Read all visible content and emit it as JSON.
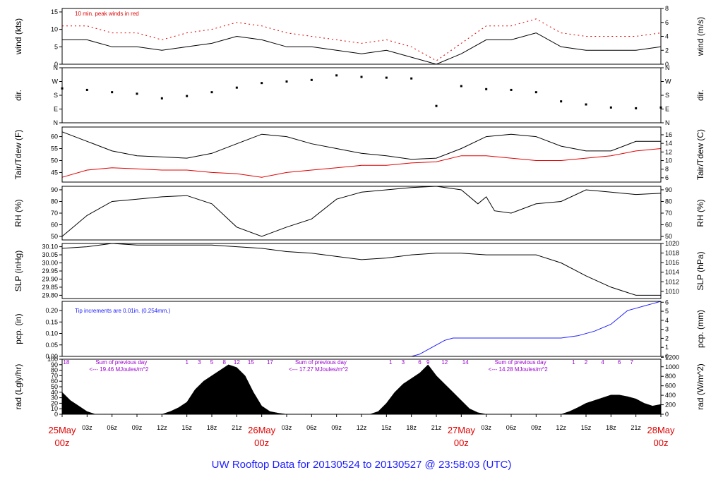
{
  "footer": {
    "title": "UW Rooftop Data for 20130524  to  20130527 @ 23:58:03  (UTC)"
  },
  "colors": {
    "black": "#000000",
    "red": "#e00000",
    "blue": "#2020ff",
    "purple": "#9900cc"
  },
  "chart_data": [
    {
      "id": "wind",
      "type": "line",
      "ylabel_left": "wind (kts)",
      "ylabel_right": "wind (m/s)",
      "ylim": [
        0,
        16
      ],
      "yticks": [
        0,
        5,
        10,
        15
      ],
      "ylim_right": [
        0,
        8
      ],
      "yticks_right": [
        0,
        2,
        4,
        6,
        8
      ],
      "annotation": "10 min. peak winds in red",
      "series": [
        {
          "name": "wind speed (kts)",
          "color": "#000000",
          "x": [
            0,
            3,
            6,
            9,
            12,
            15,
            18,
            21,
            24,
            27,
            30,
            33,
            36,
            39,
            42,
            45,
            48,
            51,
            54,
            57,
            60,
            63,
            66,
            69,
            72
          ],
          "y": [
            7,
            7,
            5,
            5,
            4,
            5,
            6,
            8,
            7,
            5,
            5,
            4,
            3,
            4,
            2,
            0,
            3,
            7,
            7,
            9,
            5,
            4,
            4,
            4,
            5
          ]
        },
        {
          "name": "10 min. peak winds",
          "color": "#e00000",
          "x": [
            0,
            3,
            6,
            9,
            12,
            15,
            18,
            21,
            24,
            27,
            30,
            33,
            36,
            39,
            42,
            45,
            48,
            51,
            54,
            57,
            60,
            63,
            66,
            69,
            72
          ],
          "y": [
            11,
            11,
            9,
            9,
            7,
            9,
            10,
            12,
            11,
            9,
            8,
            7,
            6,
            7,
            5,
            1,
            6,
            11,
            11,
            13,
            9,
            8,
            8,
            8,
            9
          ]
        }
      ]
    },
    {
      "id": "dir",
      "type": "scatter",
      "ylabel_left": "dir.",
      "ylabel_right": "dir.",
      "ylim": [
        0,
        360
      ],
      "ytick_values": [
        0,
        90,
        180,
        270,
        360
      ],
      "ytick_labels": [
        "N",
        "E",
        "S",
        "W",
        "N"
      ],
      "series": [
        {
          "name": "wind direction (deg)",
          "color": "#000000",
          "x": [
            0,
            3,
            6,
            9,
            12,
            15,
            18,
            21,
            24,
            27,
            30,
            33,
            36,
            39,
            42,
            45,
            48,
            51,
            54,
            57,
            60,
            63,
            66,
            69,
            72
          ],
          "y": [
            225,
            215,
            200,
            190,
            160,
            175,
            200,
            230,
            260,
            270,
            280,
            310,
            300,
            295,
            290,
            110,
            240,
            220,
            215,
            200,
            140,
            120,
            100,
            95,
            100
          ]
        }
      ]
    },
    {
      "id": "temp",
      "type": "line",
      "ylabel_left": "Tair/Tdew (F)",
      "ylabel_right": "Tair/Tdew (C)",
      "ylim": [
        41,
        64
      ],
      "yticks": [
        45,
        50,
        55,
        60
      ],
      "ylim_right": [
        5,
        17.8
      ],
      "yticks_right": [
        6,
        8,
        10,
        12,
        14,
        16
      ],
      "series": [
        {
          "name": "Tair",
          "color": "#000000",
          "x": [
            0,
            3,
            6,
            9,
            12,
            15,
            18,
            21,
            24,
            27,
            30,
            33,
            36,
            39,
            42,
            45,
            48,
            51,
            54,
            57,
            60,
            63,
            66,
            69,
            72
          ],
          "y": [
            62,
            58,
            54,
            52,
            51.5,
            51,
            53,
            57,
            61,
            60,
            57,
            55,
            53,
            52,
            50.5,
            51,
            55,
            60,
            61,
            60,
            56,
            54,
            54,
            58,
            58
          ]
        },
        {
          "name": "Tdew",
          "color": "#e00000",
          "x": [
            0,
            3,
            6,
            9,
            12,
            15,
            18,
            21,
            24,
            27,
            30,
            33,
            36,
            39,
            42,
            45,
            48,
            51,
            54,
            57,
            60,
            63,
            66,
            69,
            72
          ],
          "y": [
            43,
            46,
            47,
            46.5,
            46,
            46,
            45,
            44.5,
            43,
            45,
            46,
            47,
            48,
            48,
            49,
            49.5,
            52,
            52,
            51,
            50,
            50,
            51,
            52,
            54,
            55
          ]
        }
      ]
    },
    {
      "id": "rh",
      "type": "line",
      "ylabel_left": "RH (%)",
      "ylabel_right": "RH (%)",
      "ylim": [
        47,
        93
      ],
      "yticks": [
        50,
        60,
        70,
        80,
        90
      ],
      "series": [
        {
          "name": "RH",
          "color": "#000000",
          "x": [
            0,
            3,
            6,
            9,
            12,
            15,
            18,
            21,
            24,
            27,
            30,
            33,
            36,
            39,
            42,
            45,
            48,
            50,
            51,
            52,
            54,
            57,
            60,
            63,
            66,
            69,
            72
          ],
          "y": [
            50,
            68,
            80,
            82,
            84,
            85,
            78,
            58,
            50,
            58,
            65,
            82,
            88,
            90,
            92,
            93,
            90,
            78,
            84,
            72,
            70,
            78,
            80,
            90,
            88,
            86,
            87
          ]
        }
      ]
    },
    {
      "id": "slp",
      "type": "line",
      "ylabel_left": "SLP (inHg)",
      "ylabel_right": "SLP (hPa)",
      "ylim": [
        29.78,
        30.12
      ],
      "yticks": [
        29.8,
        29.85,
        29.9,
        29.95,
        30.0,
        30.05,
        30.1
      ],
      "ytick_labels": [
        "29.80",
        "29.85",
        "29.90",
        "29.95",
        "30.00",
        "30.05",
        "30.10"
      ],
      "ylim_right": [
        1008.5,
        1020
      ],
      "yticks_right": [
        1010,
        1012,
        1014,
        1016,
        1018,
        1020
      ],
      "series": [
        {
          "name": "SLP",
          "color": "#000000",
          "x": [
            0,
            3,
            6,
            9,
            12,
            15,
            18,
            21,
            24,
            27,
            30,
            33,
            36,
            39,
            42,
            45,
            48,
            51,
            54,
            57,
            60,
            63,
            66,
            69,
            72
          ],
          "y": [
            30.09,
            30.1,
            30.12,
            30.11,
            30.11,
            30.11,
            30.11,
            30.1,
            30.09,
            30.07,
            30.06,
            30.04,
            30.02,
            30.03,
            30.05,
            30.06,
            30.06,
            30.05,
            30.05,
            30.05,
            30.0,
            29.92,
            29.85,
            29.8,
            29.8
          ]
        }
      ]
    },
    {
      "id": "pcp",
      "type": "line",
      "ylabel_left": "pcp. (in)",
      "ylabel_right": "pcp. (mm)",
      "ylim": [
        0,
        0.24
      ],
      "yticks": [
        0,
        0.05,
        0.1,
        0.15,
        0.2
      ],
      "ytick_labels": [
        "0.00",
        "0.05",
        "0.10",
        "0.15",
        "0.20"
      ],
      "ylim_right": [
        0,
        6.1
      ],
      "yticks_right": [
        0,
        1,
        2,
        3,
        4,
        5,
        6
      ],
      "annotation": "Tip increments are 0.01in. (0.254mm.)",
      "series": [
        {
          "name": "cumulative precip",
          "color": "#2020ff",
          "x": [
            0,
            42,
            43,
            44,
            45,
            46,
            47,
            48,
            60,
            62,
            64,
            66,
            67,
            68,
            69,
            70,
            71,
            72
          ],
          "y": [
            0,
            0,
            0.01,
            0.03,
            0.05,
            0.07,
            0.08,
            0.08,
            0.08,
            0.09,
            0.11,
            0.14,
            0.17,
            0.2,
            0.21,
            0.22,
            0.23,
            0.24
          ]
        }
      ]
    },
    {
      "id": "rad",
      "type": "area",
      "ylabel_left": "rad (Lgly/hr)",
      "ylabel_right": "rad (W/m^2)",
      "ylim": [
        0,
        100
      ],
      "yticks": [
        0,
        10,
        20,
        30,
        40,
        50,
        60,
        70,
        80,
        90,
        100
      ],
      "ylim_right": [
        0,
        1160
      ],
      "yticks_right": [
        0,
        200,
        400,
        600,
        800,
        1000,
        1200
      ],
      "ytick_labels_right": [
        "0",
        "200",
        "400",
        "600",
        "800",
        "1000",
        "1200"
      ],
      "annotations": [
        {
          "x": 0.5,
          "text": "18",
          "color": "#9900cc"
        },
        {
          "x": 15,
          "text": "1",
          "color": "#9900cc"
        },
        {
          "x": 16.5,
          "text": "3",
          "color": "#9900cc"
        },
        {
          "x": 18,
          "text": "5",
          "color": "#9900cc"
        },
        {
          "x": 19.5,
          "text": "8",
          "color": "#9900cc"
        },
        {
          "x": 21,
          "text": "12",
          "color": "#9900cc"
        },
        {
          "x": 22.7,
          "text": "15",
          "color": "#9900cc"
        },
        {
          "x": 25,
          "text": "17",
          "color": "#9900cc"
        },
        {
          "x": 39.5,
          "text": "1",
          "color": "#9900cc"
        },
        {
          "x": 41,
          "text": "3",
          "color": "#9900cc"
        },
        {
          "x": 43,
          "text": "6",
          "color": "#9900cc"
        },
        {
          "x": 44,
          "text": "9",
          "color": "#9900cc"
        },
        {
          "x": 46,
          "text": "12",
          "color": "#9900cc"
        },
        {
          "x": 48.5,
          "text": "14",
          "color": "#9900cc"
        },
        {
          "x": 61.5,
          "text": "1",
          "color": "#9900cc"
        },
        {
          "x": 63,
          "text": "2",
          "color": "#9900cc"
        },
        {
          "x": 65,
          "text": "4",
          "color": "#9900cc"
        },
        {
          "x": 67,
          "text": "6",
          "color": "#9900cc"
        },
        {
          "x": 68.5,
          "text": "7",
          "color": "#9900cc"
        }
      ],
      "day_notes": [
        {
          "x": 3,
          "line1": "Sum of previous day",
          "line2": "<--- 19.46 MJoules/m^2"
        },
        {
          "x": 27,
          "line1": "Sum of previous day",
          "line2": "<--- 17.27 MJoules/m^2"
        },
        {
          "x": 51,
          "line1": "Sum of previous day",
          "line2": "<--- 14.28 MJoules/m^2"
        }
      ],
      "series": [
        {
          "name": "solar radiation",
          "color": "#000000",
          "x": [
            0,
            1,
            2,
            3,
            4,
            12,
            13,
            14,
            15,
            16,
            17,
            18,
            19,
            20,
            21,
            22,
            23,
            24,
            25,
            26,
            27,
            37,
            38,
            39,
            40,
            41,
            42,
            43,
            44,
            45,
            46,
            47,
            48,
            49,
            50,
            51,
            60,
            61,
            62,
            63,
            64,
            65,
            66,
            67,
            68,
            69,
            70,
            71,
            72
          ],
          "y": [
            40,
            25,
            15,
            5,
            0,
            0,
            5,
            12,
            22,
            45,
            60,
            70,
            80,
            90,
            85,
            70,
            40,
            15,
            5,
            2,
            0,
            0,
            5,
            20,
            40,
            55,
            65,
            75,
            90,
            70,
            55,
            40,
            25,
            10,
            3,
            0,
            0,
            5,
            12,
            20,
            25,
            30,
            35,
            35,
            32,
            28,
            20,
            15,
            18
          ]
        }
      ]
    }
  ],
  "xaxis": {
    "range_hours": [
      0,
      72
    ],
    "hour_ticks": [
      {
        "x": 0,
        "label": ""
      },
      {
        "x": 3,
        "label": "03z"
      },
      {
        "x": 6,
        "label": "06z"
      },
      {
        "x": 9,
        "label": "09z"
      },
      {
        "x": 12,
        "label": "12z"
      },
      {
        "x": 15,
        "label": "15z"
      },
      {
        "x": 18,
        "label": "18z"
      },
      {
        "x": 21,
        "label": "21z"
      },
      {
        "x": 24,
        "label": ""
      },
      {
        "x": 27,
        "label": "03z"
      },
      {
        "x": 30,
        "label": "06z"
      },
      {
        "x": 33,
        "label": "09z"
      },
      {
        "x": 36,
        "label": "12z"
      },
      {
        "x": 39,
        "label": "15z"
      },
      {
        "x": 42,
        "label": "18z"
      },
      {
        "x": 45,
        "label": "21z"
      },
      {
        "x": 48,
        "label": ""
      },
      {
        "x": 51,
        "label": "03z"
      },
      {
        "x": 54,
        "label": "06z"
      },
      {
        "x": 57,
        "label": "09z"
      },
      {
        "x": 60,
        "label": "12z"
      },
      {
        "x": 63,
        "label": "15z"
      },
      {
        "x": 66,
        "label": "18z"
      },
      {
        "x": 69,
        "label": "21z"
      },
      {
        "x": 72,
        "label": ""
      }
    ],
    "date_labels": [
      {
        "x": 0,
        "date": "25May",
        "time": "00z"
      },
      {
        "x": 24,
        "date": "26May",
        "time": "00z"
      },
      {
        "x": 48,
        "date": "27May",
        "time": "00z"
      },
      {
        "x": 72,
        "date": "28May",
        "time": "00z"
      }
    ]
  }
}
